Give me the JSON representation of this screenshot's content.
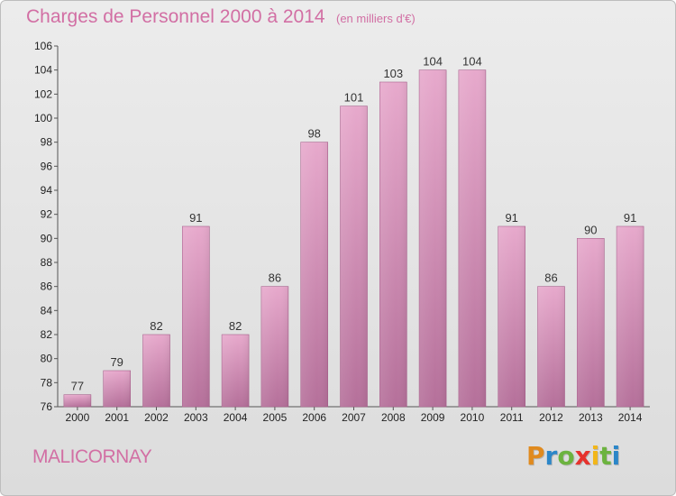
{
  "chart_data": {
    "type": "bar",
    "title": "Charges de Personnel 2000 à 2014",
    "subtitle": "(en milliers d'€)",
    "categories": [
      "2000",
      "2001",
      "2002",
      "2003",
      "2004",
      "2005",
      "2006",
      "2007",
      "2008",
      "2009",
      "2010",
      "2011",
      "2012",
      "2013",
      "2014"
    ],
    "values": [
      77,
      79,
      82,
      91,
      82,
      86,
      98,
      101,
      103,
      104,
      104,
      91,
      86,
      90,
      91
    ],
    "ylim": [
      76,
      106
    ],
    "yticks": [
      76,
      78,
      80,
      82,
      84,
      86,
      88,
      90,
      92,
      94,
      96,
      98,
      100,
      102,
      104,
      106
    ],
    "grid": false,
    "legend": "none",
    "bar_color": "#d98cb6"
  },
  "footer": {
    "commune": "MALICORNAY"
  },
  "brand": {
    "letters": [
      "P",
      "r",
      "o",
      "x",
      "i",
      "t",
      "i"
    ],
    "colors": [
      "#e08a1e",
      "#2b86c8",
      "#6cb33f",
      "#e6322d",
      "#f2b619",
      "#6cb33f",
      "#2b86c8"
    ]
  }
}
